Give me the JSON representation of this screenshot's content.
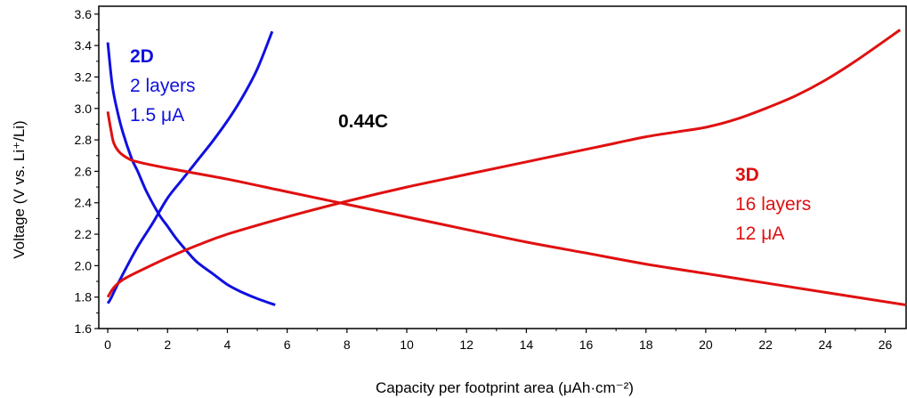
{
  "chart_data": {
    "type": "line",
    "xlabel": "Capacity per footprint area (μAh·cm⁻²)",
    "ylabel": "Voltage (V vs. Li⁺/Li)",
    "xlim": [
      -0.3,
      26.7
    ],
    "ylim": [
      1.6,
      3.65
    ],
    "xticks": [
      0,
      2,
      4,
      6,
      8,
      10,
      12,
      14,
      16,
      18,
      20,
      22,
      24,
      26
    ],
    "yticks": [
      1.6,
      1.8,
      2.0,
      2.2,
      2.4,
      2.6,
      2.8,
      3.0,
      3.2,
      3.4,
      3.6
    ],
    "xtick_labels": [
      "0",
      "2",
      "4",
      "6",
      "8",
      "10",
      "12",
      "14",
      "16",
      "18",
      "20",
      "22",
      "24",
      "26"
    ],
    "ytick_labels": [
      "1.6",
      "1.8",
      "2.0",
      "2.2",
      "2.4",
      "2.6",
      "2.8",
      "3.0",
      "3.2",
      "3.4",
      "3.6"
    ],
    "grid": false,
    "series": [
      {
        "color": "#1010e0",
        "x": [
          0.0,
          0.15,
          0.3,
          0.5,
          0.8,
          1.0,
          1.3,
          1.7,
          2.0,
          2.3,
          2.7,
          3.0,
          3.5,
          4.0,
          4.5,
          5.0,
          5.6
        ],
        "y": [
          3.42,
          3.15,
          3.0,
          2.85,
          2.68,
          2.6,
          2.47,
          2.33,
          2.25,
          2.17,
          2.08,
          2.02,
          1.95,
          1.88,
          1.83,
          1.79,
          1.75
        ]
      },
      {
        "color": "#1010e0",
        "x": [
          0.0,
          0.1,
          0.3,
          0.6,
          1.0,
          1.5,
          2.0,
          2.5,
          3.0,
          3.5,
          4.0,
          4.5,
          5.0,
          5.5
        ],
        "y": [
          1.76,
          1.79,
          1.87,
          1.98,
          2.12,
          2.27,
          2.43,
          2.55,
          2.67,
          2.79,
          2.92,
          3.07,
          3.25,
          3.49
        ]
      },
      {
        "color": "#e01010",
        "x": [
          0.0,
          0.1,
          0.2,
          0.4,
          0.7,
          1.0,
          2.0,
          4.0,
          6.0,
          8.0,
          10.0,
          12.0,
          14.0,
          16.0,
          18.0,
          20.0,
          22.0,
          24.0,
          26.7
        ],
        "y": [
          2.98,
          2.87,
          2.78,
          2.72,
          2.68,
          2.66,
          2.62,
          2.55,
          2.47,
          2.39,
          2.31,
          2.23,
          2.15,
          2.08,
          2.01,
          1.95,
          1.89,
          1.83,
          1.75
        ]
      },
      {
        "color": "#e01010",
        "x": [
          0.0,
          0.2,
          0.5,
          1.0,
          2.0,
          3.0,
          4.0,
          6.0,
          8.0,
          10.0,
          12.0,
          14.0,
          16.0,
          17.0,
          18.0,
          19.0,
          20.0,
          21.0,
          22.0,
          23.0,
          24.0,
          25.0,
          26.5
        ],
        "y": [
          1.8,
          1.86,
          1.91,
          1.96,
          2.05,
          2.13,
          2.2,
          2.31,
          2.41,
          2.5,
          2.58,
          2.66,
          2.74,
          2.78,
          2.82,
          2.85,
          2.88,
          2.93,
          3.0,
          3.08,
          3.18,
          3.3,
          3.5
        ]
      }
    ],
    "annotations": [
      {
        "lines": [
          "2D",
          "2 layers",
          "1.5 μA"
        ],
        "color": "#1010e0"
      },
      {
        "lines": [
          "0.44C"
        ],
        "color": "#000000"
      },
      {
        "lines": [
          "3D",
          "16 layers",
          "12 μA"
        ],
        "color": "#e01010"
      }
    ]
  }
}
